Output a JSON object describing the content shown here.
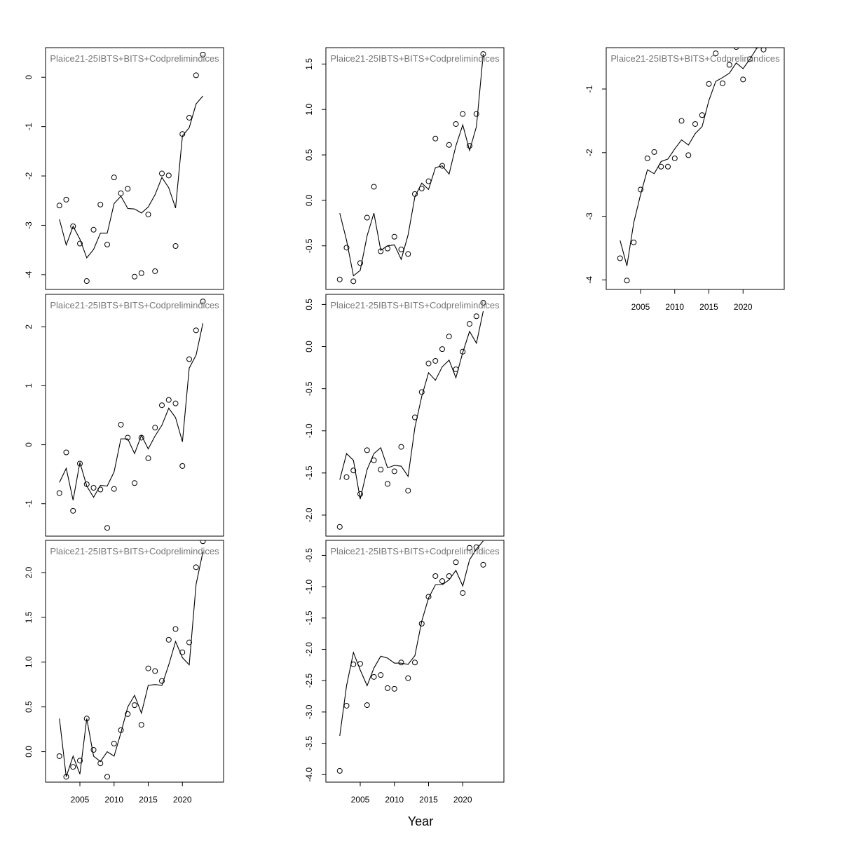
{
  "xlabel": "Year",
  "chart_data": [
    {
      "type": "scatter",
      "title": "Plaice21-25IBTS+BITS+Codprelimindices",
      "ylim": [
        -4.3,
        0.6
      ],
      "yticks": [
        0,
        -1,
        -2,
        -3,
        -4
      ],
      "xlim": [
        2001,
        2025
      ],
      "xticks": [],
      "x": [
        2002,
        2003,
        2004,
        2005,
        2006,
        2007,
        2008,
        2009,
        2010,
        2011,
        2012,
        2013,
        2014,
        2015,
        2016,
        2017,
        2018,
        2019,
        2020,
        2021,
        2022,
        2023
      ],
      "series": [
        {
          "values": [
            -2.6,
            -2.48,
            -3.02,
            -3.37,
            -4.13,
            -3.09,
            -2.58,
            -3.39,
            -2.03,
            -2.35,
            -2.26,
            -4.04,
            -3.97,
            -2.78,
            -3.93,
            -1.95,
            -1.99,
            -3.42,
            -1.15,
            -0.82,
            0.04,
            0.46
          ]
        },
        {
          "values": [
            -2.88,
            -3.4,
            -3.02,
            -3.28,
            -3.66,
            -3.49,
            -3.16,
            -3.16,
            -2.56,
            -2.41,
            -2.66,
            -2.67,
            -2.75,
            -2.63,
            -2.38,
            -2.03,
            -2.24,
            -2.65,
            -1.19,
            -1.02,
            -0.54,
            -0.38
          ]
        }
      ]
    },
    {
      "type": "scatter",
      "title": "Plaice21-25IBTS+BITS+Codprelimindices",
      "ylim": [
        -0.98,
        1.68
      ],
      "yticks": [
        1.5,
        1.0,
        0.5,
        0.0,
        -0.5
      ],
      "xlim": [
        2001,
        2025
      ],
      "xticks": [],
      "x": [
        2002,
        2003,
        2004,
        2005,
        2006,
        2007,
        2008,
        2009,
        2010,
        2011,
        2012,
        2013,
        2014,
        2015,
        2016,
        2017,
        2018,
        2019,
        2020,
        2021,
        2022,
        2023
      ],
      "series": [
        {
          "values": [
            -0.87,
            -0.52,
            -0.89,
            -0.69,
            -0.19,
            0.15,
            -0.56,
            -0.53,
            -0.4,
            -0.54,
            -0.59,
            0.07,
            0.13,
            0.21,
            0.68,
            0.38,
            0.61,
            0.84,
            0.95,
            0.6,
            0.95,
            1.61
          ]
        },
        {
          "values": [
            -0.14,
            -0.44,
            -0.83,
            -0.77,
            -0.39,
            -0.14,
            -0.55,
            -0.5,
            -0.49,
            -0.65,
            -0.38,
            0.04,
            0.19,
            0.12,
            0.36,
            0.38,
            0.29,
            0.6,
            0.83,
            0.55,
            0.81,
            1.61
          ]
        }
      ]
    },
    {
      "type": "scatter",
      "title": "Plaice21-25IBTS+BITS+Codprelimindices",
      "ylim": [
        -4.15,
        -0.35
      ],
      "yticks": [
        -1,
        -2,
        -3,
        -4
      ],
      "xlim": [
        2001,
        2025
      ],
      "xticks": [
        2005,
        2010,
        2015,
        2020
      ],
      "x": [
        2002,
        2003,
        2004,
        2005,
        2006,
        2007,
        2008,
        2009,
        2010,
        2011,
        2012,
        2013,
        2014,
        2015,
        2016,
        2017,
        2018,
        2019,
        2020,
        2021,
        2022,
        2023
      ],
      "series": [
        {
          "values": [
            -3.66,
            -4.01,
            -3.41,
            -2.58,
            -2.09,
            -1.99,
            -2.22,
            -2.22,
            -2.09,
            -1.5,
            -2.04,
            -1.55,
            -1.41,
            -0.92,
            -0.44,
            -0.91,
            -0.62,
            -0.34,
            -0.85,
            -0.53,
            -0.32,
            -0.38
          ]
        },
        {
          "values": [
            -3.38,
            -3.78,
            -3.1,
            -2.66,
            -2.27,
            -2.33,
            -2.14,
            -2.1,
            -1.94,
            -1.8,
            -1.88,
            -1.7,
            -1.59,
            -1.18,
            -0.88,
            -0.82,
            -0.75,
            -0.59,
            -0.68,
            -0.53,
            -0.36,
            -0.13
          ]
        }
      ]
    },
    {
      "type": "scatter",
      "title": "Plaice21-25IBTS+BITS+Codprelimindices",
      "ylim": [
        -1.55,
        2.55
      ],
      "yticks": [
        2,
        1,
        0,
        -1
      ],
      "xlim": [
        2001,
        2025
      ],
      "xticks": [],
      "x": [
        2002,
        2003,
        2004,
        2005,
        2006,
        2007,
        2008,
        2009,
        2010,
        2011,
        2012,
        2013,
        2014,
        2015,
        2016,
        2017,
        2018,
        2019,
        2020,
        2021,
        2022,
        2023
      ],
      "series": [
        {
          "values": [
            -0.82,
            -0.13,
            -1.12,
            -0.32,
            -0.67,
            -0.73,
            -0.76,
            -1.41,
            -0.75,
            0.34,
            0.12,
            -0.65,
            0.12,
            -0.23,
            0.29,
            0.67,
            0.76,
            0.7,
            -0.36,
            1.45,
            1.94,
            2.43
          ]
        },
        {
          "values": [
            -0.64,
            -0.4,
            -0.94,
            -0.3,
            -0.7,
            -0.89,
            -0.69,
            -0.7,
            -0.46,
            0.1,
            0.1,
            -0.15,
            0.16,
            -0.07,
            0.15,
            0.33,
            0.62,
            0.46,
            0.05,
            1.3,
            1.52,
            2.06
          ]
        }
      ]
    },
    {
      "type": "scatter",
      "title": "Plaice21-25IBTS+BITS+Codprelimindices",
      "ylim": [
        -2.25,
        0.62
      ],
      "yticks": [
        0.5,
        0.0,
        -0.5,
        -1.0,
        -1.5,
        -2.0
      ],
      "xlim": [
        2001,
        2025
      ],
      "xticks": [],
      "x": [
        2002,
        2003,
        2004,
        2005,
        2006,
        2007,
        2008,
        2009,
        2010,
        2011,
        2012,
        2013,
        2014,
        2015,
        2016,
        2017,
        2018,
        2019,
        2020,
        2021,
        2022,
        2023
      ],
      "series": [
        {
          "values": [
            -2.14,
            -1.55,
            -1.47,
            -1.75,
            -1.23,
            -1.35,
            -1.46,
            -1.63,
            -1.48,
            -1.19,
            -1.71,
            -0.84,
            -0.54,
            -0.2,
            -0.17,
            -0.03,
            0.12,
            -0.27,
            -0.06,
            0.27,
            0.36,
            0.52
          ]
        },
        {
          "values": [
            -1.58,
            -1.27,
            -1.35,
            -1.81,
            -1.46,
            -1.27,
            -1.2,
            -1.44,
            -1.41,
            -1.42,
            -1.54,
            -0.96,
            -0.59,
            -0.31,
            -0.4,
            -0.24,
            -0.16,
            -0.37,
            -0.07,
            0.18,
            0.04,
            0.42
          ]
        }
      ]
    },
    {
      "type": "scatter",
      "title": "Plaice21-25IBTS+BITS+Codprelimindices",
      "ylim": [
        -4.12,
        -0.26
      ],
      "yticks": [
        -0.5,
        -1.0,
        -1.5,
        -2.0,
        -2.5,
        -3.0,
        -3.5,
        -4.0
      ],
      "xlim": [
        2001,
        2025
      ],
      "xticks": [
        2005,
        2010,
        2015,
        2020
      ],
      "x": [
        2002,
        2003,
        2004,
        2005,
        2006,
        2007,
        2008,
        2009,
        2010,
        2011,
        2012,
        2013,
        2014,
        2015,
        2016,
        2017,
        2018,
        2019,
        2020,
        2021,
        2022,
        2023
      ],
      "series": [
        {
          "values": [
            -3.94,
            -2.9,
            -2.24,
            -2.23,
            -2.89,
            -2.44,
            -2.41,
            -2.62,
            -2.63,
            -2.21,
            -2.46,
            -2.21,
            -1.59,
            -1.16,
            -0.83,
            -0.91,
            -0.83,
            -0.61,
            -1.1,
            -0.38,
            -0.37,
            -0.65
          ]
        },
        {
          "values": [
            -3.38,
            -2.58,
            -2.05,
            -2.33,
            -2.58,
            -2.3,
            -2.11,
            -2.14,
            -2.22,
            -2.22,
            -2.24,
            -2.1,
            -1.55,
            -1.18,
            -0.97,
            -0.97,
            -0.89,
            -0.74,
            -0.99,
            -0.57,
            -0.4,
            -0.27
          ]
        }
      ]
    },
    {
      "type": "scatter",
      "title": "Plaice21-25IBTS+BITS+Codprelimindices",
      "ylim": [
        -0.34,
        2.36
      ],
      "yticks": [
        2.0,
        1.5,
        1.0,
        0.5,
        0.0
      ],
      "xlim": [
        2001,
        2025
      ],
      "xticks": [
        2005,
        2010,
        2015,
        2020
      ],
      "x": [
        2002,
        2003,
        2004,
        2005,
        2006,
        2007,
        2008,
        2009,
        2010,
        2011,
        2012,
        2013,
        2014,
        2015,
        2016,
        2017,
        2018,
        2019,
        2020,
        2021,
        2022,
        2023
      ],
      "series": [
        {
          "values": [
            -0.05,
            -0.28,
            -0.17,
            -0.1,
            0.37,
            0.02,
            -0.13,
            -0.28,
            0.09,
            0.24,
            0.42,
            0.52,
            0.3,
            0.93,
            0.9,
            0.79,
            1.25,
            1.37,
            1.11,
            1.22,
            2.06,
            2.35
          ]
        },
        {
          "values": [
            0.37,
            -0.28,
            -0.05,
            -0.25,
            0.37,
            -0.05,
            -0.11,
            0.0,
            -0.05,
            0.21,
            0.5,
            0.63,
            0.43,
            0.74,
            0.75,
            0.74,
            0.97,
            1.23,
            1.05,
            0.97,
            1.87,
            2.23
          ]
        }
      ]
    }
  ]
}
